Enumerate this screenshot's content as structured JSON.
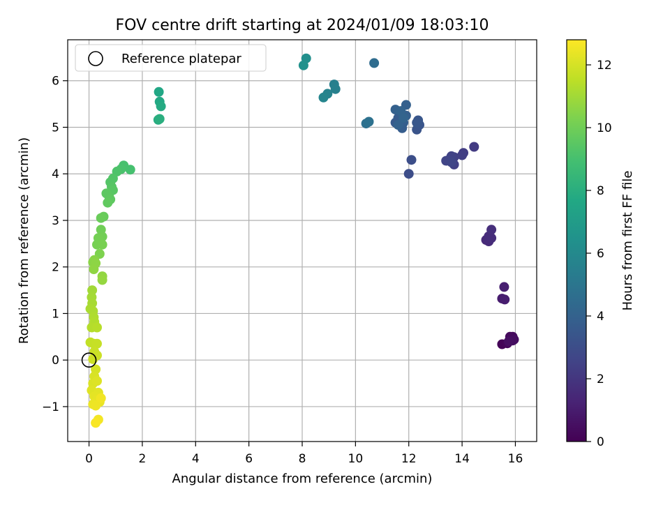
{
  "chart_data": {
    "type": "scatter",
    "title": "FOV centre drift starting at 2024/01/09 18:03:10",
    "xlabel": "Angular distance from reference (arcmin)",
    "ylabel": "Rotation from reference (arcmin)",
    "xlim": [
      -0.8,
      16.8
    ],
    "ylim": [
      -1.75,
      6.88
    ],
    "x_ticks": [
      0,
      2,
      4,
      6,
      8,
      10,
      12,
      14,
      16
    ],
    "x_tick_labels": [
      "0",
      "2",
      "4",
      "6",
      "8",
      "10",
      "12",
      "14",
      "16"
    ],
    "y_ticks": [
      -1,
      0,
      1,
      2,
      3,
      4,
      5,
      6
    ],
    "y_tick_labels": [
      "−1",
      "0",
      "1",
      "2",
      "3",
      "4",
      "5",
      "6"
    ],
    "grid": true,
    "legend": {
      "position": "top-left",
      "entries": [
        "Reference platepar"
      ]
    },
    "reference_point": {
      "x": 0,
      "y": 0,
      "label": "Reference platepar"
    },
    "colorbar": {
      "label": "Hours from first FF file",
      "colormap": "viridis",
      "range": [
        0,
        12.8
      ],
      "ticks": [
        0,
        2,
        4,
        6,
        8,
        10,
        12
      ],
      "tick_labels": [
        "0",
        "2",
        "4",
        "6",
        "8",
        "10",
        "12"
      ]
    },
    "series": [
      {
        "points": [
          [
            15.5,
            0.34,
            0.1
          ],
          [
            15.7,
            0.36,
            0.2
          ],
          [
            15.8,
            0.5,
            0.3
          ],
          [
            15.9,
            0.5,
            0.35
          ],
          [
            15.95,
            0.44,
            0.4
          ],
          [
            15.9,
            0.42,
            0.45
          ],
          [
            15.75,
            0.4,
            0.5
          ],
          [
            15.5,
            1.32,
            1.0
          ],
          [
            15.6,
            1.3,
            1.05
          ],
          [
            15.58,
            1.57,
            1.1
          ],
          [
            14.9,
            2.58,
            1.5
          ],
          [
            15.0,
            2.55,
            1.55
          ],
          [
            15.0,
            2.66,
            1.6
          ],
          [
            15.1,
            2.62,
            1.65
          ],
          [
            15.1,
            2.8,
            1.7
          ],
          [
            14.45,
            4.58,
            2.2
          ],
          [
            14.05,
            4.45,
            2.3
          ],
          [
            14.0,
            4.4,
            2.35
          ],
          [
            13.7,
            4.2,
            2.4
          ],
          [
            13.7,
            4.36,
            2.45
          ],
          [
            13.6,
            4.38,
            2.5
          ],
          [
            13.5,
            4.3,
            2.55
          ],
          [
            13.4,
            4.28,
            2.6
          ],
          [
            13.6,
            4.25,
            2.65
          ],
          [
            12.0,
            4.0,
            3.0
          ],
          [
            12.1,
            4.3,
            3.05
          ],
          [
            12.3,
            4.95,
            3.3
          ],
          [
            12.4,
            5.05,
            3.35
          ],
          [
            12.35,
            5.15,
            3.4
          ],
          [
            12.3,
            5.1,
            3.45
          ],
          [
            11.5,
            5.1,
            3.6
          ],
          [
            11.6,
            5.2,
            3.65
          ],
          [
            11.7,
            5.3,
            3.7
          ],
          [
            11.75,
            4.98,
            3.75
          ],
          [
            11.8,
            5.1,
            3.8
          ],
          [
            11.9,
            5.25,
            3.85
          ],
          [
            11.9,
            5.48,
            3.9
          ],
          [
            11.5,
            5.38,
            3.95
          ],
          [
            11.6,
            5.05,
            4.0
          ],
          [
            11.7,
            5.35,
            4.05
          ],
          [
            11.8,
            5.2,
            4.1
          ],
          [
            10.7,
            6.38,
            4.5
          ],
          [
            10.4,
            5.08,
            4.7
          ],
          [
            10.5,
            5.12,
            4.75
          ],
          [
            9.2,
            5.92,
            5.5
          ],
          [
            9.25,
            5.82,
            5.55
          ],
          [
            8.95,
            5.72,
            5.7
          ],
          [
            8.8,
            5.64,
            5.8
          ],
          [
            8.15,
            6.48,
            6.3
          ],
          [
            8.05,
            6.33,
            6.4
          ],
          [
            2.62,
            5.76,
            7.6
          ],
          [
            2.65,
            5.55,
            7.7
          ],
          [
            2.7,
            5.45,
            7.8
          ],
          [
            2.6,
            5.16,
            7.9
          ],
          [
            2.65,
            5.18,
            8.0
          ],
          [
            1.55,
            4.09,
            9.0
          ],
          [
            1.3,
            4.18,
            9.05
          ],
          [
            1.2,
            4.1,
            9.1
          ],
          [
            1.05,
            4.05,
            9.2
          ],
          [
            0.9,
            3.9,
            9.3
          ],
          [
            0.8,
            3.82,
            9.35
          ],
          [
            0.85,
            3.72,
            9.4
          ],
          [
            0.9,
            3.65,
            9.45
          ],
          [
            0.75,
            3.52,
            9.5
          ],
          [
            0.65,
            3.58,
            9.55
          ],
          [
            0.8,
            3.45,
            9.6
          ],
          [
            0.7,
            3.38,
            9.65
          ],
          [
            0.55,
            3.08,
            9.8
          ],
          [
            0.45,
            3.05,
            9.85
          ],
          [
            0.45,
            2.8,
            10.0
          ],
          [
            0.5,
            2.65,
            10.05
          ],
          [
            0.35,
            2.62,
            10.1
          ],
          [
            0.3,
            2.48,
            10.15
          ],
          [
            0.5,
            2.48,
            10.2
          ],
          [
            0.4,
            2.28,
            10.3
          ],
          [
            0.2,
            2.15,
            10.5
          ],
          [
            0.15,
            2.1,
            10.55
          ],
          [
            0.25,
            2.08,
            10.6
          ],
          [
            0.18,
            1.95,
            10.65
          ],
          [
            0.5,
            1.8,
            10.7
          ],
          [
            0.5,
            1.72,
            10.75
          ],
          [
            0.12,
            1.5,
            11.0
          ],
          [
            0.1,
            1.35,
            11.05
          ],
          [
            0.12,
            1.22,
            11.1
          ],
          [
            0.05,
            1.1,
            11.15
          ],
          [
            0.15,
            1.05,
            11.2
          ],
          [
            0.18,
            0.92,
            11.25
          ],
          [
            0.2,
            0.82,
            11.3
          ],
          [
            0.1,
            0.7,
            11.35
          ],
          [
            0.3,
            0.7,
            11.4
          ],
          [
            0.05,
            0.38,
            11.6
          ],
          [
            0.18,
            0.35,
            11.65
          ],
          [
            0.3,
            0.35,
            11.7
          ],
          [
            0.2,
            0.18,
            11.75
          ],
          [
            0.3,
            0.1,
            11.8
          ],
          [
            0.15,
            0.02,
            11.85
          ],
          [
            0.25,
            -0.2,
            12.0
          ],
          [
            0.2,
            -0.35,
            12.05
          ],
          [
            0.15,
            -0.5,
            12.1
          ],
          [
            0.3,
            -0.45,
            12.15
          ],
          [
            0.1,
            -0.65,
            12.2
          ],
          [
            0.35,
            -0.7,
            12.25
          ],
          [
            0.2,
            -0.78,
            12.3
          ],
          [
            0.3,
            -0.85,
            12.35
          ],
          [
            0.4,
            -0.9,
            12.4
          ],
          [
            0.15,
            -0.95,
            12.45
          ],
          [
            0.25,
            -0.98,
            12.5
          ],
          [
            0.45,
            -0.82,
            12.55
          ],
          [
            0.35,
            -1.28,
            12.6
          ],
          [
            0.25,
            -1.35,
            12.7
          ]
        ]
      }
    ]
  }
}
